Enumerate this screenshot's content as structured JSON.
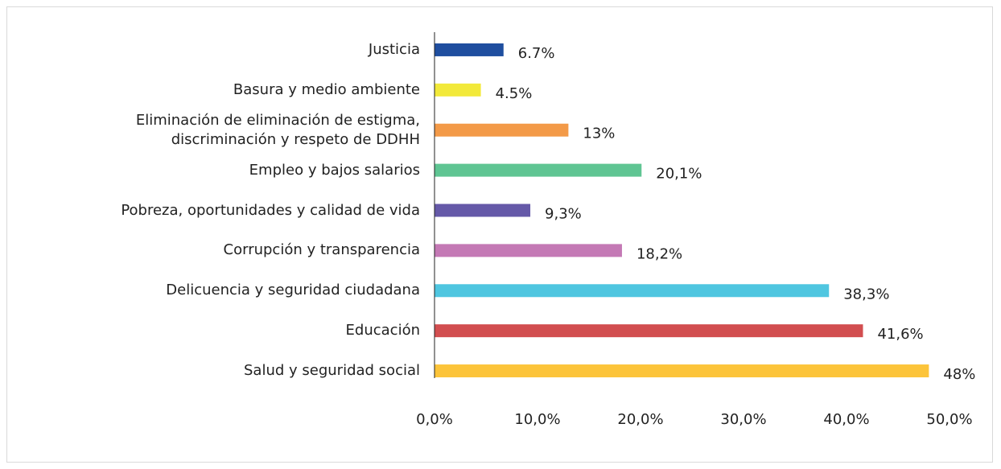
{
  "chart_data": {
    "type": "barh",
    "categories": [
      "Justicia",
      "Basura y medio ambiente",
      "Eliminación de eliminación de estigma,\ndiscriminación y respeto de DDHH",
      "Empleo y bajos salarios",
      "Pobreza, oportunidades y calidad de vida",
      "Corrupción y transparencia",
      "Delicuencia y seguridad ciudadana",
      "Educación",
      "Salud y seguridad social"
    ],
    "values": [
      6.7,
      4.5,
      13,
      20.1,
      9.3,
      18.2,
      38.3,
      41.6,
      48
    ],
    "value_labels": [
      "6.7%",
      "4.5%",
      "13%",
      "20,1%",
      "9,3%",
      "18,2%",
      "38,3%",
      "41,6%",
      "48%"
    ],
    "colors": [
      "#1f4e9f",
      "#f2e93a",
      "#f39a48",
      "#5fc593",
      "#6559a8",
      "#c479b5",
      "#4fc6e0",
      "#d24e50",
      "#fcc43a"
    ],
    "xlim": [
      0,
      50
    ],
    "xticks": [
      {
        "value": 0,
        "label": "0,0%"
      },
      {
        "value": 10,
        "label": "10,0%"
      },
      {
        "value": 20,
        "label": "20,0%"
      },
      {
        "value": 30,
        "label": "30,0%"
      },
      {
        "value": 40,
        "label": "40,0%"
      },
      {
        "value": 50,
        "label": "50,0%"
      }
    ],
    "grid": false
  }
}
